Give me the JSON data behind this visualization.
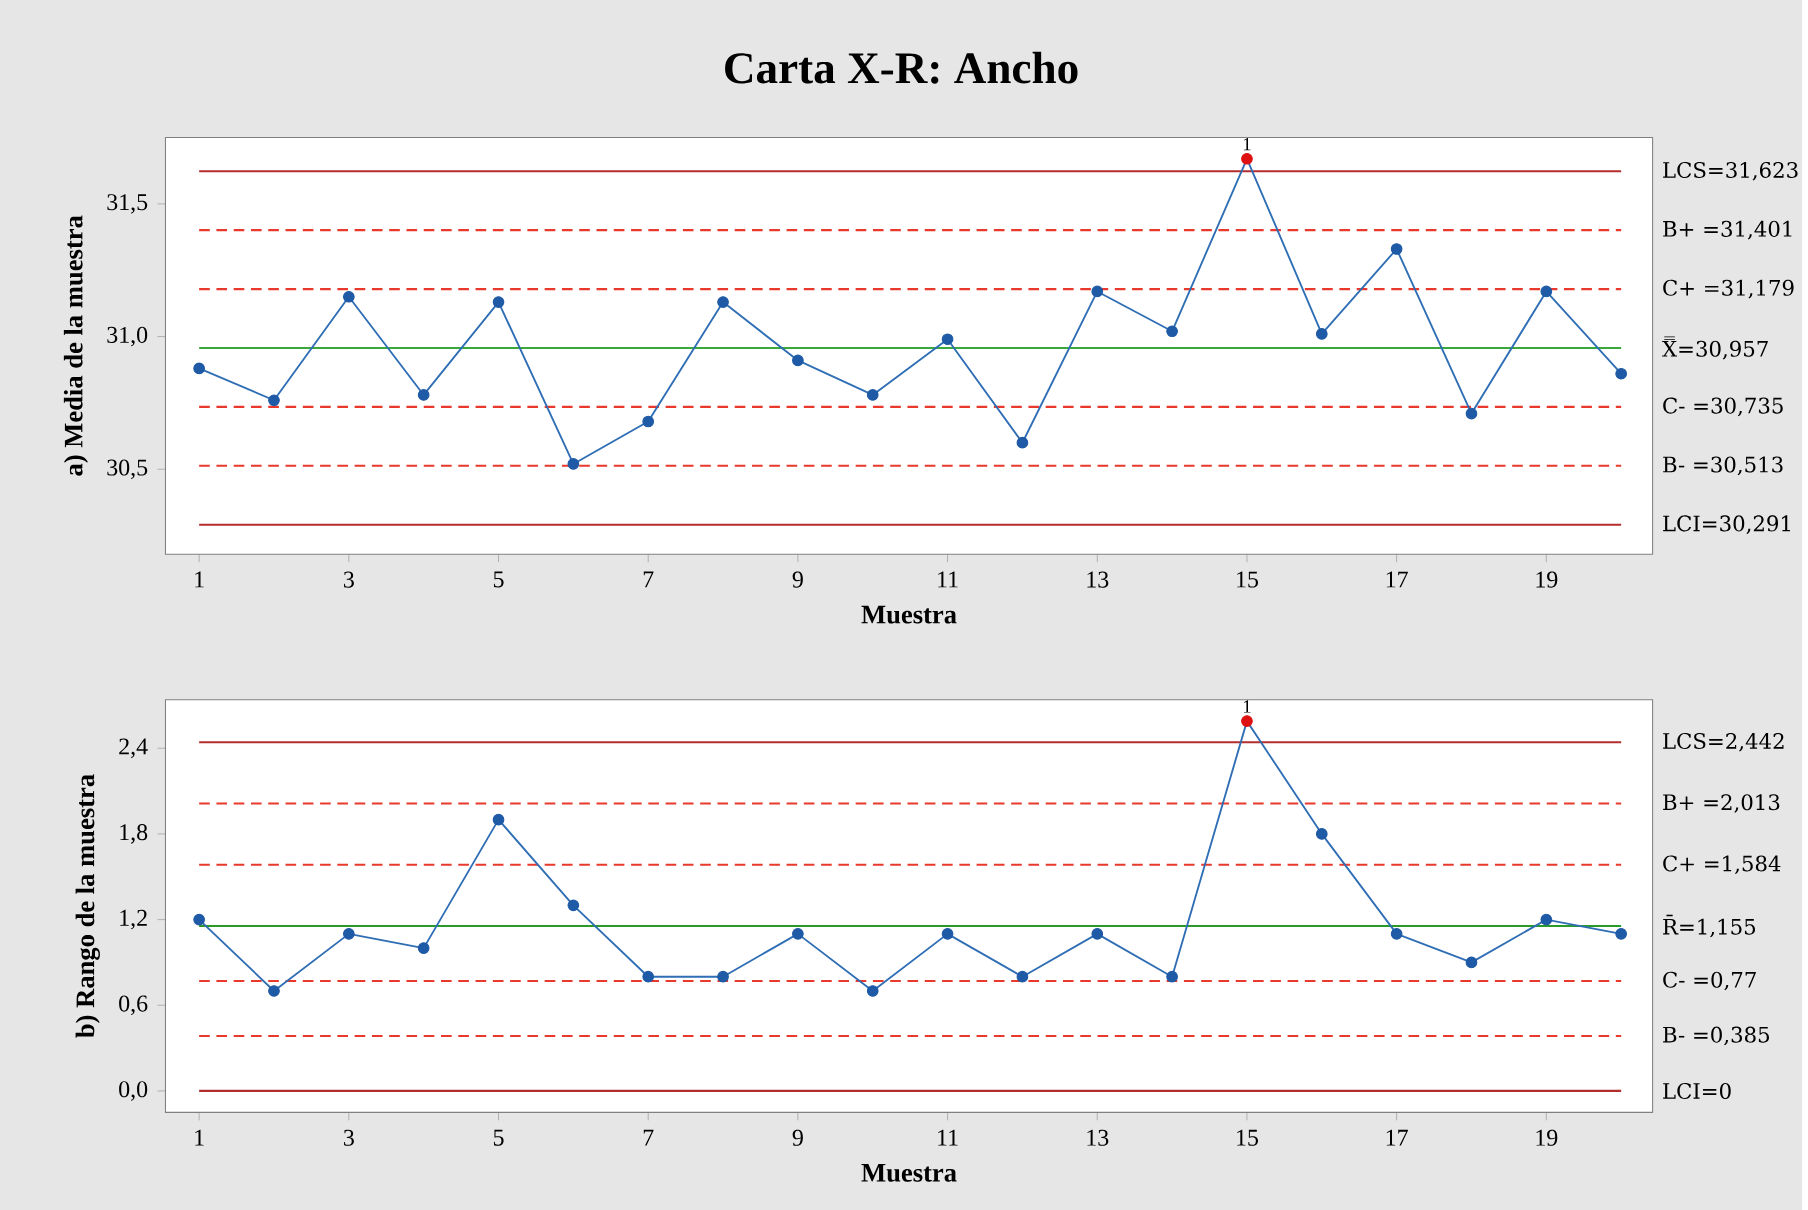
{
  "chart_data": [
    {
      "type": "line",
      "title": "Carta X-R: Ancho",
      "xlabel": "Muestra",
      "ylabel": "a) Media de la muestra",
      "x": [
        1,
        2,
        3,
        4,
        5,
        6,
        7,
        8,
        9,
        10,
        11,
        12,
        13,
        14,
        15,
        16,
        17,
        18,
        19,
        20
      ],
      "series": [
        {
          "color": "#2f6eb5",
          "values": [
            30.88,
            30.76,
            31.15,
            30.78,
            31.13,
            30.52,
            30.68,
            31.13,
            30.91,
            30.78,
            30.99,
            30.6,
            31.17,
            31.02,
            31.67,
            31.01,
            31.33,
            30.71,
            31.17,
            30.86
          ],
          "colors": [
            "#1f5aa6",
            "#1f5aa6",
            "#1f5aa6",
            "#1f5aa6",
            "#1f5aa6",
            "#1f5aa6",
            "#1f5aa6",
            "#1f5aa6",
            "#1f5aa6",
            "#1f5aa6",
            "#1f5aa6",
            "#1f5aa6",
            "#1f5aa6",
            "#1f5aa6",
            "#dd1111",
            "#1f5aa6",
            "#1f5aa6",
            "#1f5aa6",
            "#1f5aa6",
            "#1f5aa6"
          ]
        }
      ],
      "xlim": [
        0.55,
        20.42
      ],
      "ylim": [
        30.18,
        31.75
      ],
      "xticks": [
        1,
        3,
        5,
        7,
        9,
        11,
        13,
        15,
        17,
        19
      ],
      "yticks": [
        {
          "value": 30.5,
          "label": "30,5"
        },
        {
          "value": 31.0,
          "label": "31,0"
        },
        {
          "value": 31.5,
          "label": "31,5"
        }
      ],
      "ref_lines": [
        {
          "axis": "y",
          "value": 31.623,
          "label": "LCS=31,623",
          "color": "#b22d2d",
          "line_style": "solid"
        },
        {
          "axis": "y",
          "value": 31.401,
          "label": "B+ =31,401",
          "color": "#e8392c",
          "line_style": "dashed"
        },
        {
          "axis": "y",
          "value": 31.179,
          "label": "C+ =31,179",
          "color": "#e8392c",
          "line_style": "dashed"
        },
        {
          "axis": "y",
          "value": 30.957,
          "label": "X̿=30,957",
          "color": "#3aa83a",
          "line_style": "solid"
        },
        {
          "axis": "y",
          "value": 30.735,
          "label": "C- =30,735",
          "color": "#e8392c",
          "line_style": "dashed"
        },
        {
          "axis": "y",
          "value": 30.513,
          "label": "B- =30,513",
          "color": "#e8392c",
          "line_style": "dashed"
        },
        {
          "axis": "y",
          "value": 30.291,
          "label": "LCI=30,291",
          "color": "#b22d2d",
          "line_style": "solid"
        }
      ],
      "annotations": [
        {
          "text": "1",
          "x": 15,
          "y": 31.67
        }
      ],
      "marker": "circle",
      "line_style": "solid",
      "grid": false
    },
    {
      "type": "line",
      "xlabel": "Muestra",
      "ylabel": "b) Rango de la muestra",
      "x": [
        1,
        2,
        3,
        4,
        5,
        6,
        7,
        8,
        9,
        10,
        11,
        12,
        13,
        14,
        15,
        16,
        17,
        18,
        19,
        20
      ],
      "series": [
        {
          "color": "#2f6eb5",
          "values": [
            1.2,
            0.7,
            1.1,
            1.0,
            1.9,
            1.3,
            0.8,
            0.8,
            1.1,
            0.7,
            1.1,
            0.8,
            1.1,
            0.8,
            2.59,
            1.8,
            1.1,
            0.9,
            1.2,
            1.1
          ],
          "colors": [
            "#1f5aa6",
            "#1f5aa6",
            "#1f5aa6",
            "#1f5aa6",
            "#1f5aa6",
            "#1f5aa6",
            "#1f5aa6",
            "#1f5aa6",
            "#1f5aa6",
            "#1f5aa6",
            "#1f5aa6",
            "#1f5aa6",
            "#1f5aa6",
            "#1f5aa6",
            "#dd1111",
            "#1f5aa6",
            "#1f5aa6",
            "#1f5aa6",
            "#1f5aa6",
            "#1f5aa6"
          ]
        }
      ],
      "xlim": [
        0.55,
        20.42
      ],
      "ylim": [
        -0.15,
        2.74
      ],
      "xticks": [
        1,
        3,
        5,
        7,
        9,
        11,
        13,
        15,
        17,
        19
      ],
      "yticks": [
        {
          "value": 0,
          "label": "0,0"
        },
        {
          "value": 0.6,
          "label": "0,6"
        },
        {
          "value": 1.2,
          "label": "1,2"
        },
        {
          "value": 1.8,
          "label": "1,8"
        },
        {
          "value": 2.4,
          "label": "2,4"
        }
      ],
      "ref_lines": [
        {
          "axis": "y",
          "value": 2.442,
          "label": "LCS=2,442",
          "color": "#b22d2d",
          "line_style": "solid"
        },
        {
          "axis": "y",
          "value": 2.013,
          "label": "B+ =2,013",
          "color": "#e8392c",
          "line_style": "dashed"
        },
        {
          "axis": "y",
          "value": 1.584,
          "label": "C+ =1,584",
          "color": "#e8392c",
          "line_style": "dashed"
        },
        {
          "axis": "y",
          "value": 1.155,
          "label": "R̄=1,155",
          "color": "#2a9a2a",
          "line_style": "solid"
        },
        {
          "axis": "y",
          "value": 0.77,
          "label": "C- =0,77",
          "color": "#e8392c",
          "line_style": "dashed"
        },
        {
          "axis": "y",
          "value": 0.385,
          "label": "B- =0,385",
          "color": "#e8392c",
          "line_style": "dashed"
        },
        {
          "axis": "y",
          "value": 0,
          "label": "LCI=0",
          "color": "#b22d2d",
          "line_style": "solid"
        }
      ],
      "annotations": [
        {
          "text": "1",
          "x": 15,
          "y": 2.59
        }
      ],
      "marker": "circle",
      "line_style": "solid",
      "grid": false
    }
  ]
}
